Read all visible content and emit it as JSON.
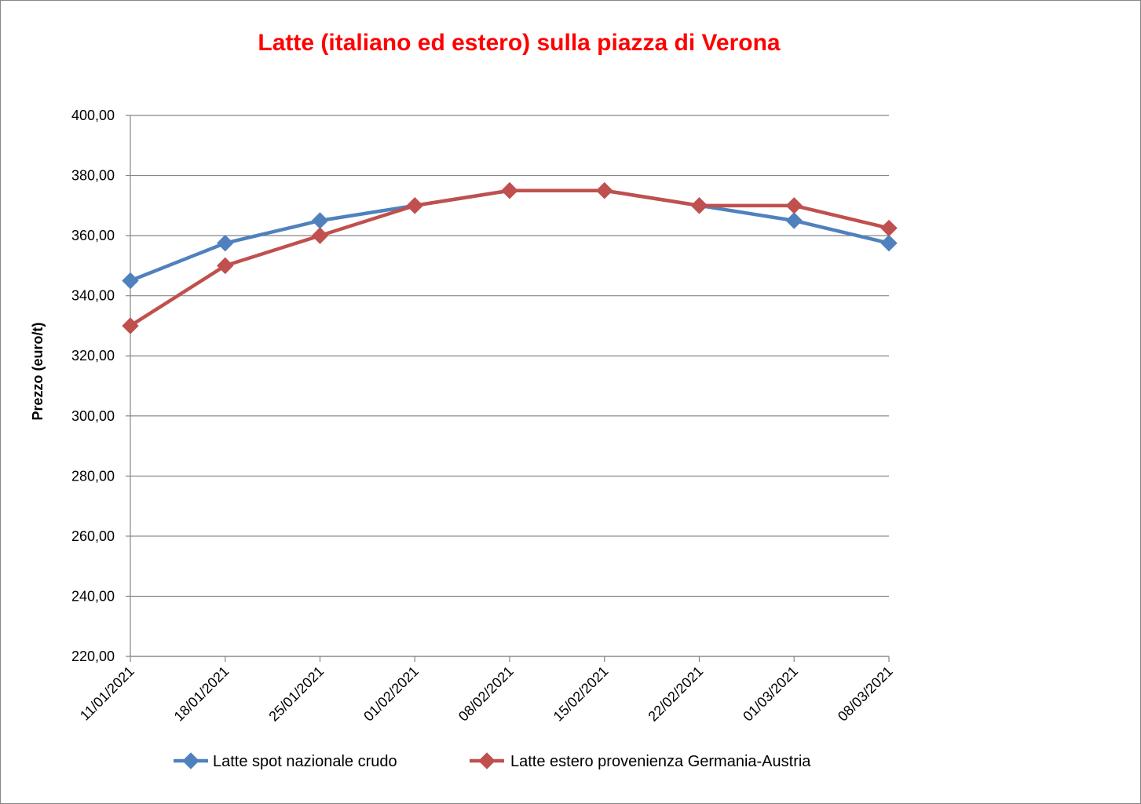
{
  "chart_data": {
    "type": "line",
    "title": "Latte (italiano ed estero) sulla piazza di Verona",
    "ylabel": "Prezzo (euro/t)",
    "xlabel": "",
    "categories": [
      "11/01/2021",
      "18/01/2021",
      "25/01/2021",
      "01/02/2021",
      "08/02/2021",
      "15/02/2021",
      "22/02/2021",
      "01/03/2021",
      "08/03/2021"
    ],
    "ylim": [
      220,
      400
    ],
    "yticks": [
      400,
      380,
      360,
      340,
      320,
      300,
      280,
      260,
      240,
      220
    ],
    "ytick_labels": [
      "400,00",
      "380,00",
      "360,00",
      "340,00",
      "320,00",
      "300,00",
      "280,00",
      "260,00",
      "240,00",
      "220,00"
    ],
    "grid": true,
    "legend_position": "bottom",
    "series": [
      {
        "name": "Latte spot nazionale crudo",
        "color": "#4F81BD",
        "marker": "diamond",
        "values": [
          345,
          357.5,
          365,
          370,
          375,
          375,
          370,
          365,
          357.5
        ]
      },
      {
        "name": "Latte estero provenienza Germania-Austria",
        "color": "#C0504D",
        "marker": "diamond",
        "values": [
          330,
          350,
          360,
          370,
          375,
          375,
          370,
          370,
          362.5
        ]
      }
    ],
    "title_color": "#FF0000"
  }
}
